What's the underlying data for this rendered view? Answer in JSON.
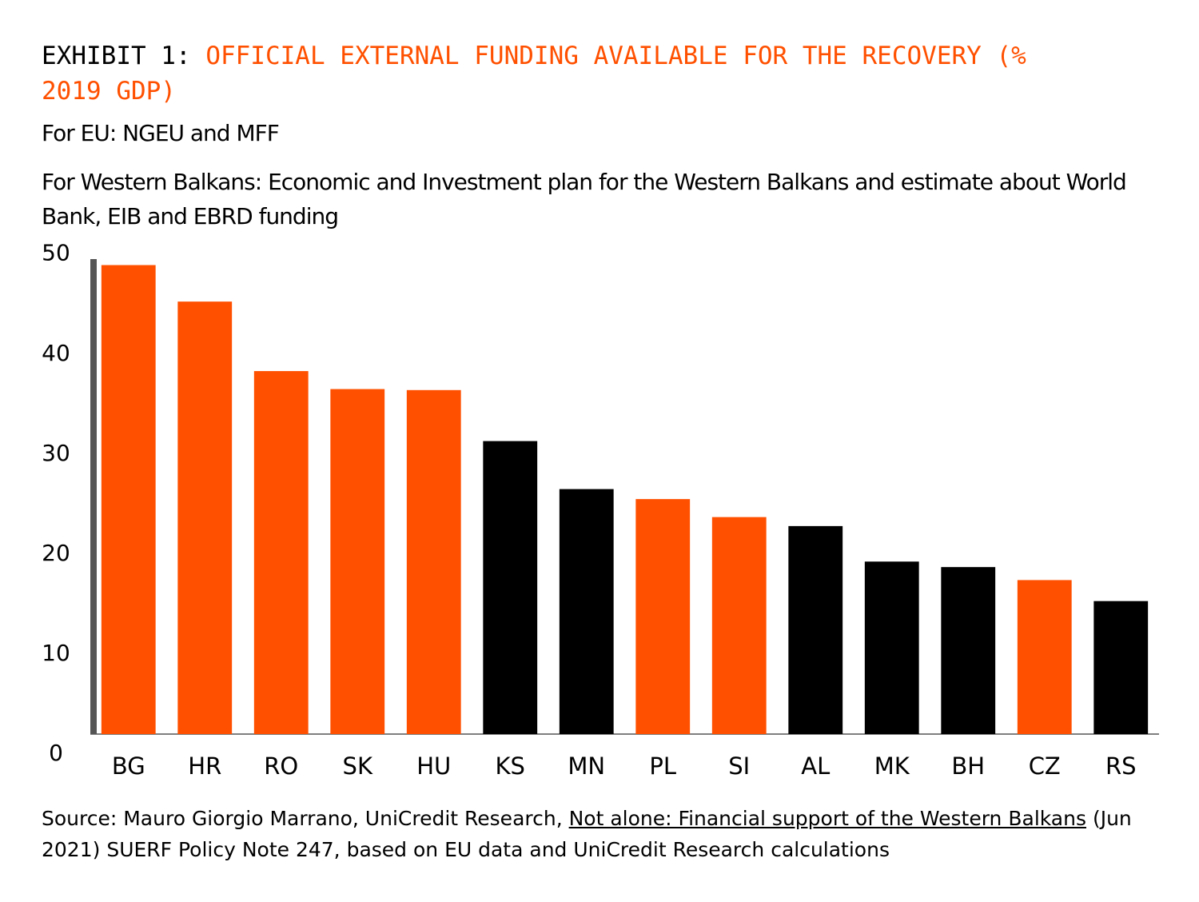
{
  "chart_data": {
    "type": "bar",
    "title_prefix": "EXHIBIT 1: ",
    "title": "OFFICIAL EXTERNAL FUNDING AVAILABLE FOR THE RECOVERY (% 2019 GDP)",
    "subtitle": [
      "For EU: NGEU and MFF",
      "For Western Balkans: Economic and Investment plan for the Western Balkans and estimate about World Bank, EIB and EBRD funding"
    ],
    "categories": [
      "BG",
      "HR",
      "RO",
      "SK",
      "HU",
      "KS",
      "MN",
      "PL",
      "SI",
      "AL",
      "MK",
      "BH",
      "CZ",
      "RS"
    ],
    "values": [
      48.9,
      45.25,
      38.3,
      36.5,
      36.4,
      31.3,
      26.5,
      25.5,
      23.7,
      22.8,
      19.25,
      18.7,
      17.4,
      15.3
    ],
    "colors": [
      "#ff5000",
      "#ff5000",
      "#ff5000",
      "#ff5000",
      "#ff5000",
      "#000000",
      "#000000",
      "#ff5000",
      "#ff5000",
      "#000000",
      "#000000",
      "#000000",
      "#ff5000",
      "#000000"
    ],
    "ylim": [
      2,
      49.5
    ],
    "yticks": [
      0,
      10,
      20,
      30,
      40,
      50
    ],
    "source": {
      "before": "Source: Mauro Giorgio Marrano, UniCredit Research, ",
      "link": "Not alone: Financial support of the Western Balkans",
      "after": " (Jun 2021) SUERF Policy Note 247, based on EU data and UniCredit Research calculations"
    }
  }
}
